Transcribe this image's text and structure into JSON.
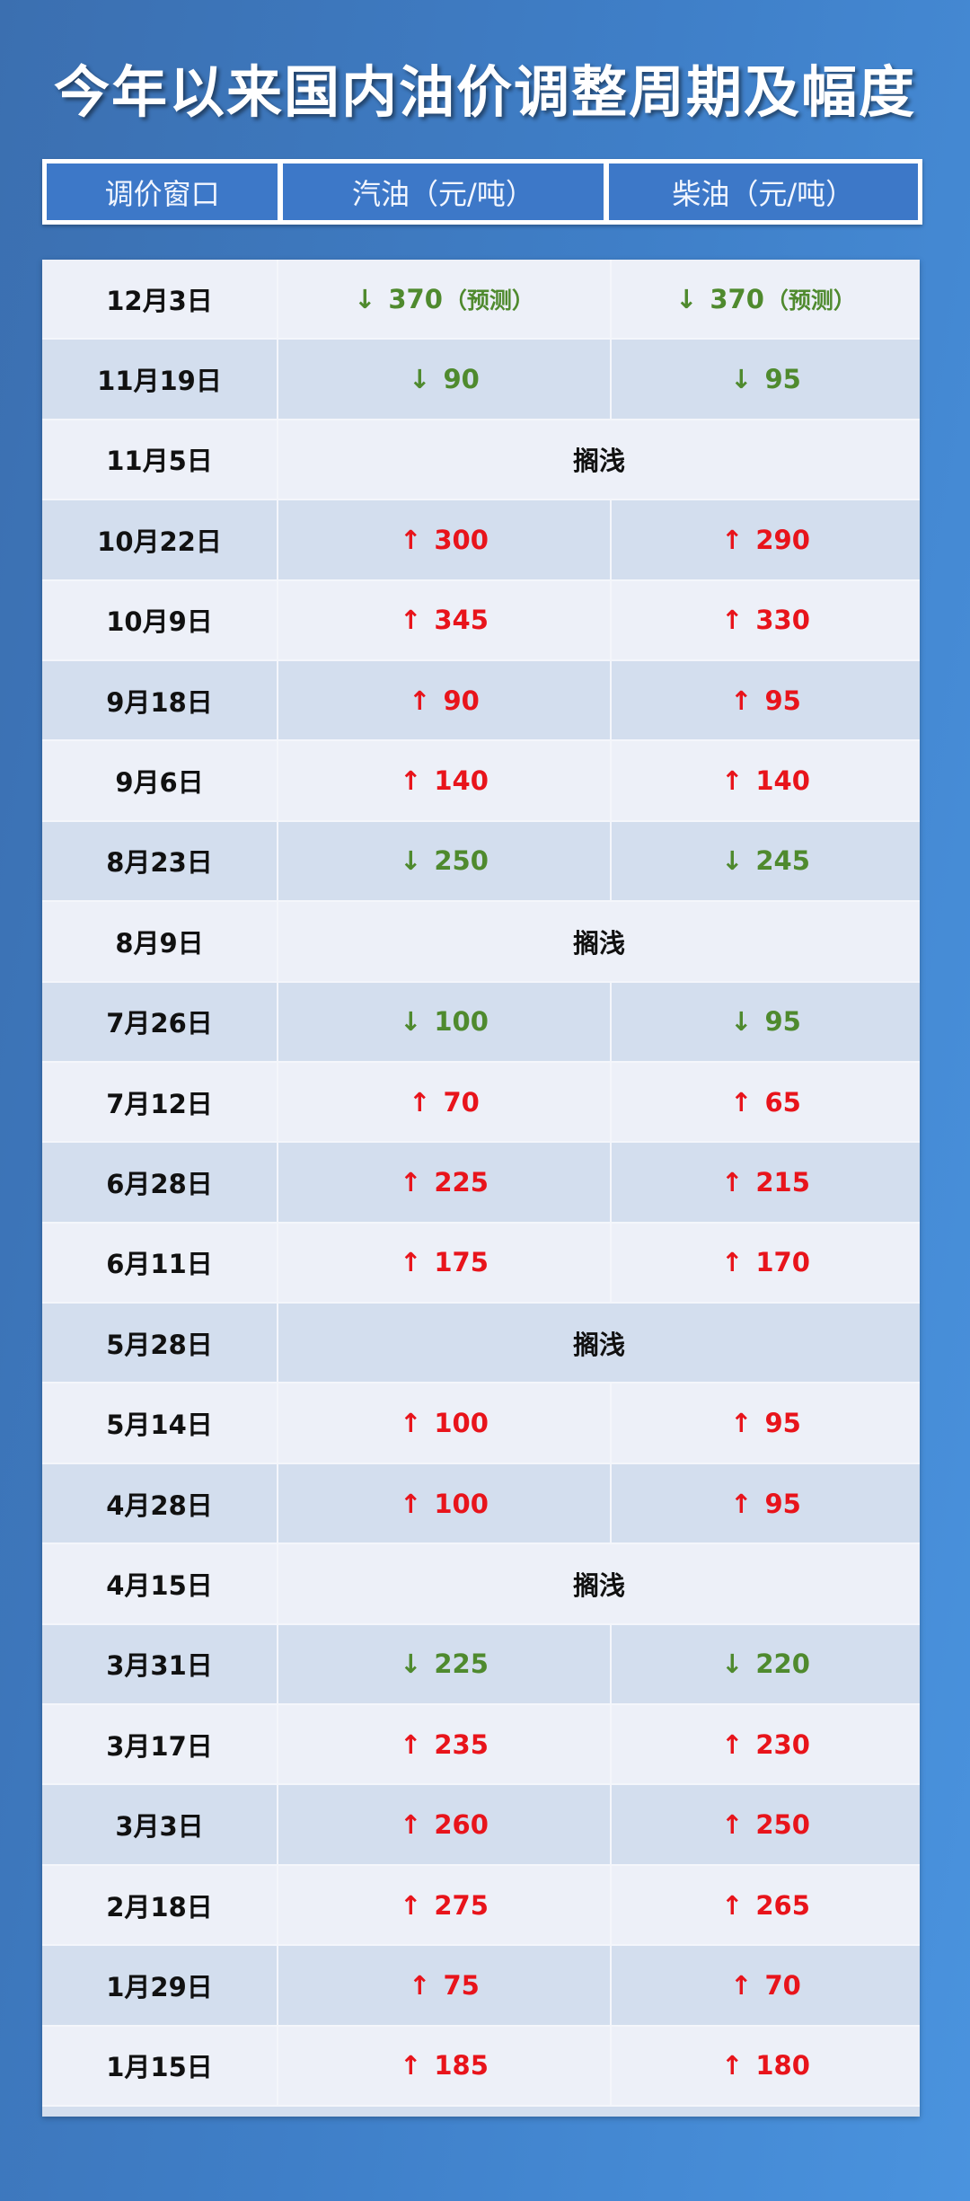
{
  "title": "今年以来国内油价调整周期及幅度",
  "header": [
    "调价窗口",
    "汽油（元/吨）",
    "柴油（元/吨）"
  ],
  "colors": {
    "up": "#e8141b",
    "down": "#4f8a2e",
    "background": "#3f7fc8"
  },
  "icons": {
    "up": "arrow-up-icon",
    "down": "arrow-down-icon"
  },
  "rows": [
    {
      "date": "12月3日",
      "gasoline": {
        "dir": "down",
        "value": "370",
        "note": "（预测）"
      },
      "diesel": {
        "dir": "down",
        "value": "370",
        "note": "（预测）"
      }
    },
    {
      "date": "11月19日",
      "gasoline": {
        "dir": "down",
        "value": "90"
      },
      "diesel": {
        "dir": "down",
        "value": "95"
      }
    },
    {
      "date": "11月5日",
      "status": "搁浅"
    },
    {
      "date": "10月22日",
      "gasoline": {
        "dir": "up",
        "value": "300"
      },
      "diesel": {
        "dir": "up",
        "value": "290"
      }
    },
    {
      "date": "10月9日",
      "gasoline": {
        "dir": "up",
        "value": "345"
      },
      "diesel": {
        "dir": "up",
        "value": "330"
      }
    },
    {
      "date": "9月18日",
      "gasoline": {
        "dir": "up",
        "value": "90"
      },
      "diesel": {
        "dir": "up",
        "value": "95"
      }
    },
    {
      "date": "9月6日",
      "gasoline": {
        "dir": "up",
        "value": "140"
      },
      "diesel": {
        "dir": "up",
        "value": "140"
      }
    },
    {
      "date": "8月23日",
      "gasoline": {
        "dir": "down",
        "value": "250"
      },
      "diesel": {
        "dir": "down",
        "value": "245"
      }
    },
    {
      "date": "8月9日",
      "status": "搁浅"
    },
    {
      "date": "7月26日",
      "gasoline": {
        "dir": "down",
        "value": "100"
      },
      "diesel": {
        "dir": "down",
        "value": "95"
      }
    },
    {
      "date": "7月12日",
      "gasoline": {
        "dir": "up",
        "value": "70"
      },
      "diesel": {
        "dir": "up",
        "value": "65"
      }
    },
    {
      "date": "6月28日",
      "gasoline": {
        "dir": "up",
        "value": "225"
      },
      "diesel": {
        "dir": "up",
        "value": "215"
      }
    },
    {
      "date": "6月11日",
      "gasoline": {
        "dir": "up",
        "value": "175"
      },
      "diesel": {
        "dir": "up",
        "value": "170"
      }
    },
    {
      "date": "5月28日",
      "status": "搁浅"
    },
    {
      "date": "5月14日",
      "gasoline": {
        "dir": "up",
        "value": "100"
      },
      "diesel": {
        "dir": "up",
        "value": "95"
      }
    },
    {
      "date": "4月28日",
      "gasoline": {
        "dir": "up",
        "value": "100"
      },
      "diesel": {
        "dir": "up",
        "value": "95"
      }
    },
    {
      "date": "4月15日",
      "status": "搁浅"
    },
    {
      "date": "3月31日",
      "gasoline": {
        "dir": "down",
        "value": "225"
      },
      "diesel": {
        "dir": "down",
        "value": "220"
      }
    },
    {
      "date": "3月17日",
      "gasoline": {
        "dir": "up",
        "value": "235"
      },
      "diesel": {
        "dir": "up",
        "value": "230"
      }
    },
    {
      "date": "3月3日",
      "gasoline": {
        "dir": "up",
        "value": "260"
      },
      "diesel": {
        "dir": "up",
        "value": "250"
      }
    },
    {
      "date": "2月18日",
      "gasoline": {
        "dir": "up",
        "value": "275"
      },
      "diesel": {
        "dir": "up",
        "value": "265"
      }
    },
    {
      "date": "1月29日",
      "gasoline": {
        "dir": "up",
        "value": "75"
      },
      "diesel": {
        "dir": "up",
        "value": "70"
      }
    },
    {
      "date": "1月15日",
      "gasoline": {
        "dir": "up",
        "value": "185"
      },
      "diesel": {
        "dir": "up",
        "value": "180"
      }
    }
  ]
}
